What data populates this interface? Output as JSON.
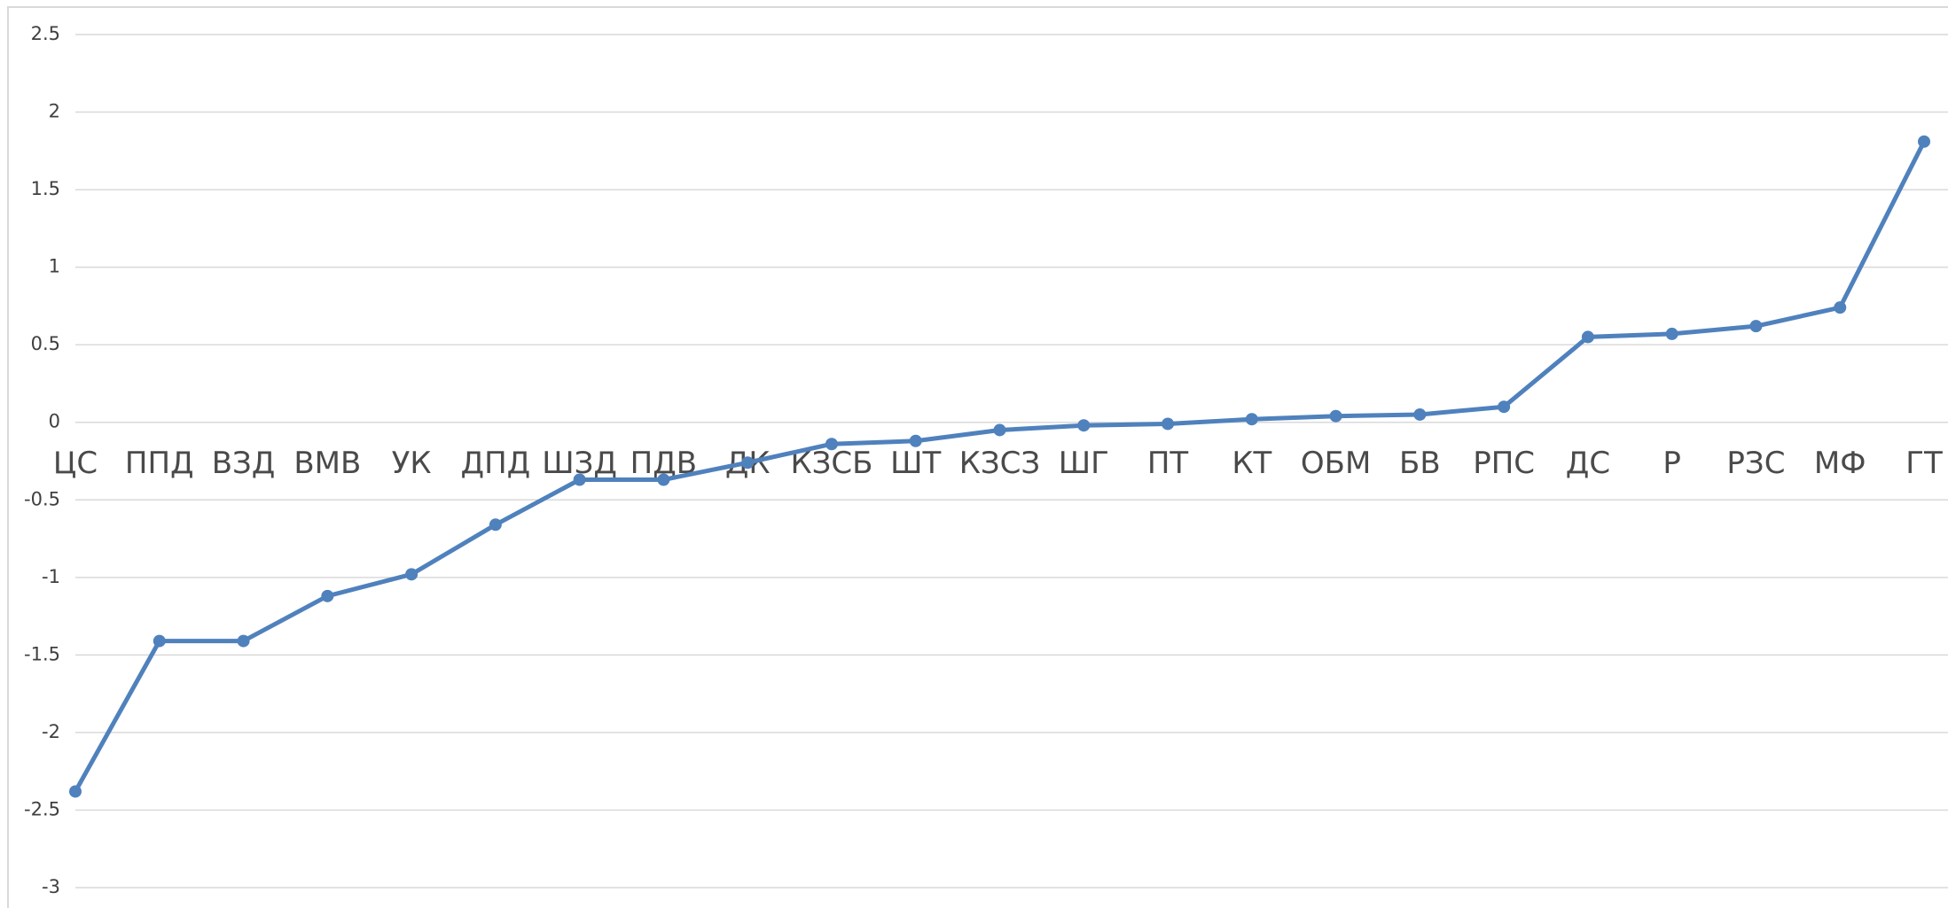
{
  "chart_data": {
    "type": "line",
    "categories": [
      "ЦС",
      "ППД",
      "ВЗД",
      "ВМВ",
      "УК",
      "ДПД",
      "ШЗД",
      "ПДВ",
      "ДК",
      "КЗСБ",
      "ШТ",
      "КЗСЗ",
      "ШГ",
      "ПТ",
      "КТ",
      "ОБМ",
      "БВ",
      "РПС",
      "ДС",
      "Р",
      "РЗС",
      "МФ",
      "ГТ"
    ],
    "series": [
      {
        "name": null,
        "color": "#4f81bd",
        "values": [
          -2.38,
          -1.41,
          -1.41,
          -1.12,
          -0.98,
          -0.66,
          -0.37,
          -0.37,
          -0.26,
          -0.14,
          -0.12,
          -0.05,
          -0.02,
          -0.01,
          0.02,
          0.04,
          0.05,
          0.1,
          0.55,
          0.57,
          0.62,
          0.74,
          1.81
        ]
      }
    ],
    "ylim": [
      -3,
      2.5
    ],
    "yticks": [
      -3,
      -2.5,
      -2,
      -1.5,
      -1,
      -0.5,
      0,
      0.5,
      1,
      1.5,
      2,
      2.5
    ],
    "grid": true
  }
}
